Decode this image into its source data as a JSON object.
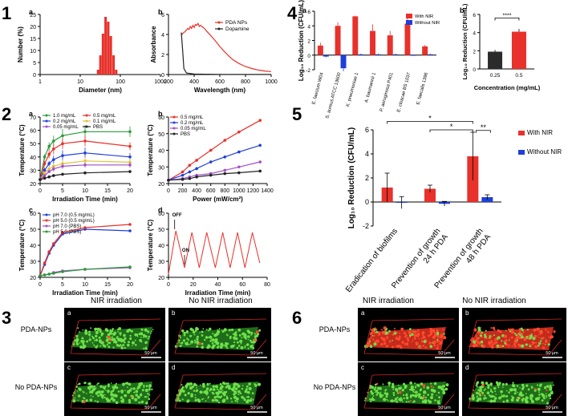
{
  "figure": {
    "panel_numbers": [
      "1",
      "2",
      "3",
      "4",
      "5",
      "6"
    ],
    "sub_letters": [
      "a",
      "b",
      "c",
      "d"
    ],
    "scale_bar_label": "50 μm",
    "panel3": {
      "top_col": "NIR irradiation",
      "top_col2": "No NIR irradiation",
      "row1": "PDA-NPs",
      "row2": "No PDA-NPs"
    },
    "panel6": {
      "top_col": "NIR irradiation",
      "top_col2": "No NIR irradiation",
      "row1": "PDA-NPs",
      "row2": "No PDA-NPs"
    },
    "colors": {
      "red": "#e8312a",
      "blue": "#1f3fd8",
      "green": "#2a9a3a",
      "purple": "#a34fc8",
      "pink": "#e055a8",
      "black": "#222222",
      "dark_bar": "#2b2b2b",
      "biofilm_green": "#3aa832",
      "biofilm_red": "#c42b1c"
    }
  },
  "chart_data": [
    {
      "id": "1a",
      "type": "bar",
      "xscale": "log",
      "xlabel": "Diameter (nm)",
      "ylabel": "Number (%)",
      "xlim": [
        1,
        1000
      ],
      "ylim": [
        0,
        25
      ],
      "xticks": [
        1,
        10,
        100,
        1000
      ],
      "yticks": [
        0,
        5,
        10,
        15,
        20,
        25
      ],
      "x": [
        28,
        32,
        37,
        43,
        50,
        58,
        68,
        79
      ],
      "values": [
        2,
        8,
        17,
        24,
        22,
        16,
        8,
        2
      ],
      "color": "#e8312a"
    },
    {
      "id": "1b",
      "type": "line",
      "xlabel": "Wavelength (nm)",
      "ylabel": "Absorbance",
      "xlim": [
        200,
        1000
      ],
      "ylim": [
        0,
        6
      ],
      "xticks": [
        200,
        400,
        600,
        800,
        1000
      ],
      "yticks": [
        0,
        2,
        4,
        6
      ],
      "series": [
        {
          "name": "PDA NPs",
          "color": "#e8312a",
          "x": [
            300,
            310,
            330,
            350,
            360,
            370,
            380,
            390,
            400,
            410,
            420,
            430,
            440,
            450,
            460,
            480,
            500,
            550,
            600,
            650,
            700,
            750,
            800,
            850,
            900,
            950,
            1000
          ],
          "y": [
            3.9,
            4.1,
            4.3,
            4.6,
            4.5,
            4.8,
            4.6,
            4.9,
            4.7,
            5.0,
            4.9,
            5.1,
            4.8,
            4.9,
            4.8,
            4.6,
            4.3,
            3.6,
            2.8,
            2.1,
            1.5,
            1.1,
            0.8,
            0.6,
            0.45,
            0.35,
            0.3
          ]
        },
        {
          "name": "Dopamine",
          "color": "#222222",
          "x": [
            300,
            310,
            320,
            340,
            400,
            500,
            600,
            700,
            800,
            900,
            1000
          ],
          "y": [
            4.2,
            2.5,
            0.6,
            0.15,
            0.05,
            0.03,
            0.02,
            0.02,
            0.02,
            0.02,
            0.02
          ]
        }
      ]
    },
    {
      "id": "2a",
      "type": "line",
      "xlabel": "Irradiation Time (min)",
      "ylabel": "Temperature (°C)",
      "xlim": [
        0,
        20
      ],
      "ylim": [
        20,
        70
      ],
      "xticks": [
        0,
        5,
        10,
        15,
        20
      ],
      "yticks": [
        20,
        30,
        40,
        50,
        60,
        70
      ],
      "x": [
        0,
        1,
        2,
        3,
        5,
        10,
        20
      ],
      "series": [
        {
          "name": "1.0 mg/mL",
          "color": "#2a9a3a",
          "y": [
            23,
            40,
            48,
            52,
            56,
            59,
            59
          ],
          "err": [
            1,
            2,
            3,
            4,
            5,
            5,
            4
          ]
        },
        {
          "name": "0.5 mg/mL",
          "color": "#e8312a",
          "y": [
            23,
            35,
            42,
            46,
            50,
            52,
            48
          ],
          "err": [
            1,
            2,
            3,
            4,
            4,
            4,
            3
          ]
        },
        {
          "name": "0.2 mg/mL",
          "color": "#1f3fd8",
          "y": [
            23,
            30,
            35,
            38,
            41,
            43,
            40
          ],
          "err": [
            1,
            2,
            2,
            3,
            4,
            4,
            3
          ]
        },
        {
          "name": "0.1 mg/mL",
          "color": "#e2c33a",
          "y": [
            23,
            28,
            31,
            33,
            35,
            37,
            36
          ],
          "err": [
            1,
            1,
            2,
            2,
            3,
            3,
            3
          ]
        },
        {
          "name": "0.05 mg/mL",
          "color": "#a34fc8",
          "y": [
            23,
            26,
            29,
            31,
            33,
            34,
            34
          ],
          "err": [
            1,
            1,
            1,
            2,
            2,
            2,
            2
          ]
        },
        {
          "name": "PBS",
          "color": "#222222",
          "y": [
            23,
            24,
            25,
            26,
            27,
            28,
            29
          ],
          "err": [
            0.5,
            0.5,
            0.5,
            1,
            1,
            1,
            1
          ]
        }
      ]
    },
    {
      "id": "2b",
      "type": "line",
      "xlabel": "Power  (mW/cm²)",
      "ylabel": "Temperature (°C)",
      "xlim": [
        0,
        1400
      ],
      "ylim": [
        20,
        60
      ],
      "xticks": [
        0,
        200,
        400,
        600,
        800,
        1000,
        1200,
        1400
      ],
      "yticks": [
        20,
        30,
        40,
        50,
        60
      ],
      "x": [
        0,
        200,
        300,
        400,
        600,
        800,
        1000,
        1300
      ],
      "series": [
        {
          "name": "0.5 mg/mL",
          "color": "#e8312a",
          "y": [
            22,
            27,
            31,
            34,
            40,
            46,
            51,
            58
          ]
        },
        {
          "name": "0.2 mg/mL",
          "color": "#1f3fd8",
          "y": [
            22,
            25,
            27,
            29,
            33,
            36,
            39,
            43
          ]
        },
        {
          "name": "0.05 mg/mL",
          "color": "#a34fc8",
          "y": [
            22,
            23,
            24,
            25,
            26,
            28,
            30,
            33
          ]
        },
        {
          "name": "PBS",
          "color": "#222222",
          "y": [
            22,
            22.5,
            23,
            24,
            25,
            26,
            26.5,
            27.5
          ]
        }
      ]
    },
    {
      "id": "2c",
      "type": "line",
      "xlabel": "Irradiation Time (min)",
      "ylabel": "Temperature (°C)",
      "xlim": [
        0,
        20
      ],
      "ylim": [
        20,
        60
      ],
      "xticks": [
        0,
        5,
        10,
        15,
        20
      ],
      "yticks": [
        20,
        30,
        40,
        50,
        60
      ],
      "x": [
        0,
        1,
        2,
        3,
        5,
        10,
        20
      ],
      "series": [
        {
          "name": "pH 7.0 (0.5 mg/mL)",
          "color": "#1f3fd8",
          "y": [
            21,
            28,
            35,
            40,
            47,
            50,
            49
          ]
        },
        {
          "name": "pH 5.0 (0.5 mg/mL)",
          "color": "#e8312a",
          "y": [
            21,
            29,
            36,
            41,
            48,
            51,
            53
          ]
        },
        {
          "name": "pH 7.0 (PBS)",
          "color": "#a34fc8",
          "y": [
            21,
            21.5,
            22,
            23,
            24,
            25,
            26
          ]
        },
        {
          "name": "pH 5.0 (PBS)",
          "color": "#2a9a3a",
          "y": [
            21,
            21.5,
            22,
            22.5,
            23.5,
            25,
            26.5
          ]
        }
      ]
    },
    {
      "id": "2d",
      "type": "line",
      "xlabel": "Irradiation Time (min)",
      "ylabel": "Temperature (°C)",
      "xlim": [
        0,
        80
      ],
      "ylim": [
        20,
        60
      ],
      "xticks": [
        0,
        20,
        40,
        60,
        80
      ],
      "yticks": [
        20,
        30,
        40,
        50,
        60
      ],
      "annotations": [
        "OFF",
        "ON"
      ],
      "series": [
        {
          "name": "cycling",
          "color": "#e8312a",
          "x": [
            0,
            6,
            13,
            19,
            25,
            31,
            38,
            44,
            50,
            56,
            62,
            68,
            74
          ],
          "y": [
            22,
            49,
            26,
            48,
            26,
            48,
            26,
            48,
            26,
            48,
            26,
            48,
            29
          ]
        }
      ]
    },
    {
      "id": "4a",
      "type": "bar",
      "ylabel": "Log₁₀ Reduction (CFU/mL)",
      "ylim": [
        -2,
        6
      ],
      "yticks": [
        -2,
        0,
        2,
        4,
        6
      ],
      "categories": [
        "E. faecium W04",
        "S. aureus ATCC 13600",
        "K. pneumoniae 1",
        "A. baumannii 1",
        "P. aeruginosa P401",
        "E. cloacae BS 1037",
        "E. faecalis 1396"
      ],
      "series": [
        {
          "name": "With NIR",
          "color": "#e8312a",
          "values": [
            1.3,
            4.0,
            5.3,
            3.3,
            2.7,
            4.3,
            1.2
          ],
          "err": [
            0.4,
            0.5,
            0.1,
            0.9,
            0.6,
            1.2,
            0.2
          ]
        },
        {
          "name": "Without NIR",
          "color": "#1f3fd8",
          "values": [
            -0.2,
            -1.8,
            0.1,
            0.1,
            0.1,
            0.0,
            0.1
          ],
          "err": [
            0.1,
            0.4,
            0.1,
            0.1,
            0.1,
            0.1,
            0.1
          ]
        }
      ]
    },
    {
      "id": "4b",
      "type": "bar",
      "xlabel": "Concentration (mg/mL)",
      "ylabel": "Log₁₀ Reduction (CFU/mL)",
      "ylim": [
        0,
        6
      ],
      "yticks": [
        0,
        2,
        4,
        6
      ],
      "categories": [
        "0.25",
        "0.5"
      ],
      "values": [
        1.9,
        4.1
      ],
      "err": [
        0.2,
        0.3
      ],
      "colors": [
        "#2b2b2b",
        "#e8312a"
      ],
      "significance": "****"
    },
    {
      "id": "5",
      "type": "bar",
      "ylabel": "Log₁₀ Reduction (CFU/mL)",
      "ylim": [
        -2,
        6
      ],
      "yticks": [
        -2,
        0,
        2,
        4,
        6
      ],
      "categories": [
        "Eradication of biofilms",
        "Prevention of growth 24 h PDA",
        "Prevention of growth 48 h PDA"
      ],
      "series": [
        {
          "name": "With NIR",
          "color": "#e8312a",
          "values": [
            1.2,
            1.1,
            3.8
          ],
          "err": [
            1.2,
            0.3,
            2.0
          ]
        },
        {
          "name": "Without NIR",
          "color": "#1f3fd8",
          "values": [
            -0.05,
            -0.15,
            0.4
          ],
          "err": [
            0.5,
            0.2,
            0.2
          ]
        }
      ],
      "significance": [
        "*",
        "*",
        "**"
      ]
    }
  ]
}
